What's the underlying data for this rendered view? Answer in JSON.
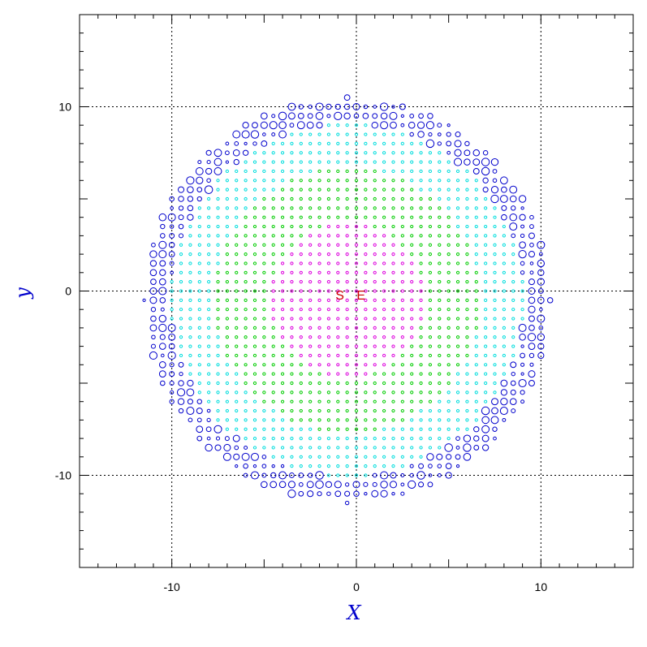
{
  "chart_data": {
    "type": "scatter",
    "title": "",
    "xlabel": "X",
    "ylabel": "y",
    "xlim": [
      -15,
      15
    ],
    "ylim": [
      -15,
      15
    ],
    "xticks": [
      -10,
      0,
      10
    ],
    "xtick_labels": [
      "-10",
      "0",
      "10"
    ],
    "yticks": [
      -10,
      0,
      10
    ],
    "ytick_labels": [
      "-10",
      "0",
      "10"
    ],
    "minor_tick_step": 1,
    "major_tick_step": 5,
    "grid": true,
    "grid_values": [
      -10,
      0,
      10
    ],
    "grid_style": "dotted",
    "marker": "open-circle",
    "grid_spacing": 0.5,
    "footprint": {
      "shape": "disk",
      "center": [
        -0.5,
        -0.5
      ],
      "radius": 11.0,
      "edge_ring_width": 1.4
    },
    "color_bands": [
      {
        "max_radius": 4.2,
        "color": "#dd00dd"
      },
      {
        "max_radius": 7.2,
        "color": "#00cc00"
      },
      {
        "max_radius": 9.6,
        "color": "#00dddd"
      },
      {
        "max_radius": 99,
        "color": "#0000cc"
      }
    ],
    "series": [
      {
        "color": "#dd00dd"
      },
      {
        "color": "#00cc00"
      },
      {
        "color": "#00dddd"
      },
      {
        "color": "#0000cc"
      }
    ],
    "annotations": [
      {
        "text": "S",
        "x": -0.9,
        "y": -0.2,
        "color": "#cc0000"
      },
      {
        "text": "E",
        "x": 0.25,
        "y": -0.2,
        "color": "#cc0000"
      }
    ],
    "colors": {
      "axis": "#000000",
      "grid": "#000000",
      "axis_title": "#0000cc"
    }
  }
}
